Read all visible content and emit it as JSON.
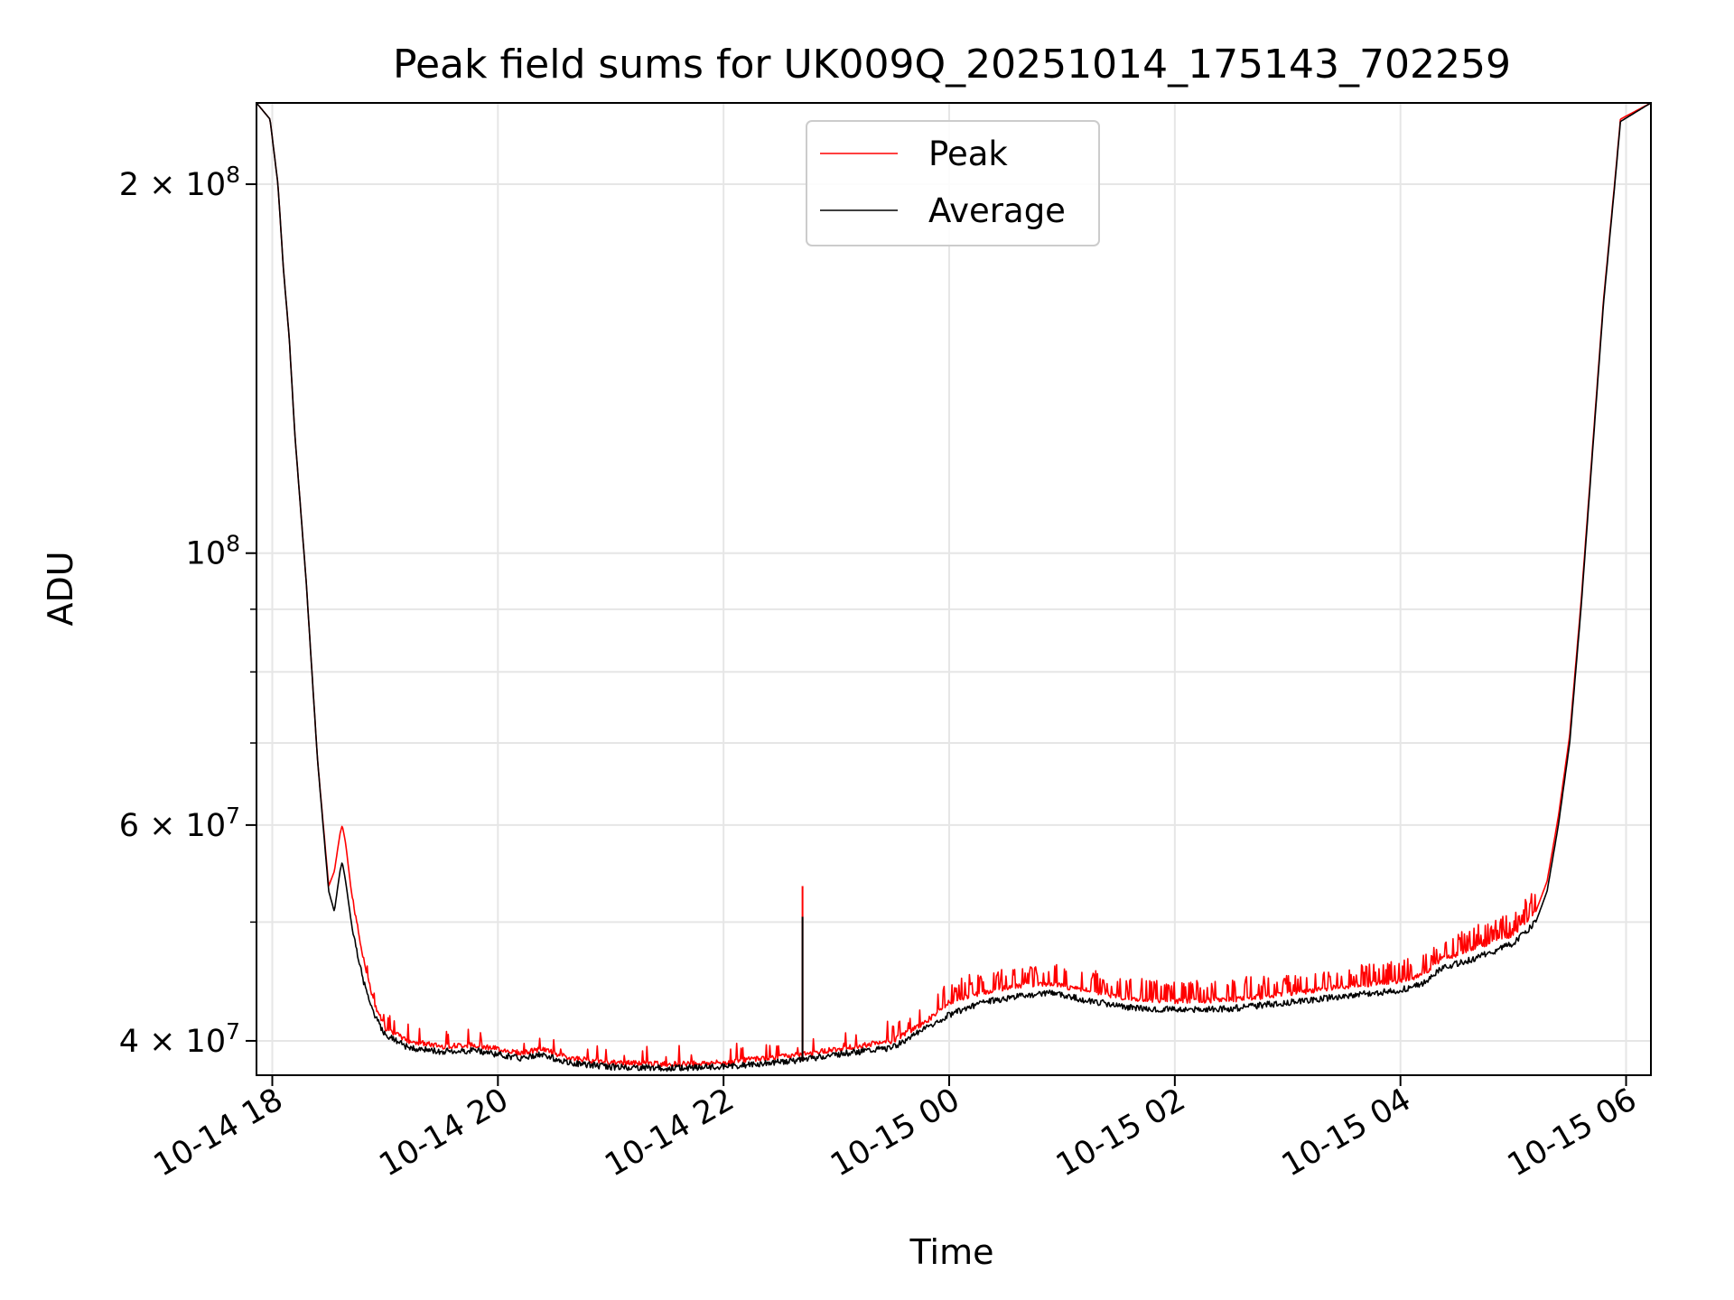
{
  "chart_data": {
    "type": "line",
    "title": "Peak field sums for UK009Q_20251014_175143_702259",
    "xlabel": "Time",
    "ylabel": "ADU",
    "yscale": "log",
    "ylim": [
      37500000,
      233000000
    ],
    "xlim_hours": [
      -0.14,
      12.22
    ],
    "grid": true,
    "legend_position": "top-center",
    "x_ticks": [
      {
        "hours": 0,
        "label": "10-14 18"
      },
      {
        "hours": 2,
        "label": "10-14 20"
      },
      {
        "hours": 4,
        "label": "10-14 22"
      },
      {
        "hours": 6,
        "label": "10-15 00"
      },
      {
        "hours": 8,
        "label": "10-15 02"
      },
      {
        "hours": 10,
        "label": "10-15 04"
      },
      {
        "hours": 12,
        "label": "10-15 06"
      }
    ],
    "y_major_ticks": [
      {
        "value": 40000000,
        "mantissa": "4",
        "exponent": "7"
      },
      {
        "value": 60000000,
        "mantissa": "6",
        "exponent": "7"
      },
      {
        "value": 100000000,
        "mantissa": "",
        "exponent": "8"
      },
      {
        "value": 200000000,
        "mantissa": "2",
        "exponent": "8"
      }
    ],
    "y_minor_ticks": [
      50000000,
      70000000,
      80000000,
      90000000
    ],
    "series": [
      {
        "name": "Average",
        "color": "#000000",
        "x_hours": [
          -0.14,
          -0.02,
          0.05,
          0.1,
          0.15,
          0.2,
          0.3,
          0.4,
          0.5,
          0.55,
          0.6,
          0.62,
          0.65,
          0.7,
          0.8,
          0.9,
          1.0,
          1.2,
          1.5,
          1.8,
          2.0,
          2.2,
          2.4,
          2.6,
          3.0,
          3.5,
          4.0,
          4.3,
          4.6,
          4.7,
          5.0,
          5.5,
          5.8,
          6.0,
          6.3,
          6.6,
          6.9,
          7.2,
          7.6,
          8.0,
          8.5,
          9.0,
          9.5,
          10.0,
          10.2,
          10.35,
          10.6,
          11.0,
          11.2,
          11.3,
          11.4,
          11.5,
          11.6,
          11.7,
          11.8,
          11.9,
          11.95,
          12.22
        ],
        "y": [
          233000000,
          226000000,
          200000000,
          170000000,
          150000000,
          125000000,
          95000000,
          68000000,
          53000000,
          51000000,
          55000000,
          56000000,
          54000000,
          50000000,
          45000000,
          42000000,
          40500000,
          39500000,
          39200000,
          39300000,
          39000000,
          38700000,
          39000000,
          38400000,
          38100000,
          38000000,
          38100000,
          38300000,
          38500000,
          38600000,
          39000000,
          39500000,
          41000000,
          42000000,
          43000000,
          43500000,
          43800000,
          43200000,
          42600000,
          42400000,
          42500000,
          43000000,
          43500000,
          44000000,
          44500000,
          45800000,
          46500000,
          48000000,
          50000000,
          53000000,
          60000000,
          70000000,
          90000000,
          120000000,
          160000000,
          200000000,
          225000000,
          233000000
        ]
      },
      {
        "name": "Peak",
        "color": "#ff0000",
        "x_hours": [
          -0.14,
          -0.02,
          0.05,
          0.1,
          0.15,
          0.2,
          0.3,
          0.4,
          0.5,
          0.55,
          0.6,
          0.62,
          0.65,
          0.7,
          0.8,
          0.9,
          1.0,
          1.2,
          1.5,
          1.8,
          2.0,
          2.2,
          2.4,
          2.6,
          3.0,
          3.5,
          4.0,
          4.3,
          4.6,
          4.7,
          5.0,
          5.5,
          5.8,
          6.0,
          6.3,
          6.6,
          6.9,
          7.2,
          7.6,
          8.0,
          8.5,
          9.0,
          9.5,
          10.0,
          10.2,
          10.35,
          10.6,
          11.0,
          11.2,
          11.3,
          11.4,
          11.5,
          11.6,
          11.7,
          11.8,
          11.9,
          11.95,
          12.22
        ],
        "y": [
          233000000,
          226000000,
          200000000,
          170000000,
          150000000,
          125000000,
          95000000,
          68000000,
          53500000,
          55000000,
          59000000,
          60000000,
          58000000,
          53000000,
          47000000,
          43000000,
          41000000,
          40000000,
          39600000,
          39700000,
          39400000,
          39100000,
          39400000,
          38800000,
          38400000,
          38300000,
          38400000,
          38700000,
          38900000,
          39000000,
          39400000,
          40000000,
          41500000,
          43000000,
          43800000,
          44400000,
          44500000,
          44000000,
          43300000,
          43100000,
          43200000,
          43700000,
          44300000,
          44800000,
          45300000,
          46600000,
          47400000,
          48900000,
          51000000,
          54000000,
          61000000,
          71000000,
          91000000,
          121000000,
          161000000,
          201000000,
          226000000,
          233000000
        ]
      }
    ],
    "spike": {
      "hours": 4.7,
      "peak": 53500000,
      "average": 50500000,
      "base": 38500000
    }
  }
}
